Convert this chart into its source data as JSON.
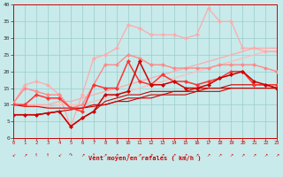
{
  "xlabel": "Vent moyen/en rafales ( km/h )",
  "x": [
    0,
    1,
    2,
    3,
    4,
    5,
    6,
    7,
    8,
    9,
    10,
    11,
    12,
    13,
    14,
    15,
    16,
    17,
    18,
    19,
    20,
    21,
    22,
    23
  ],
  "background_color": "#c8eaea",
  "grid_color": "#99cccc",
  "lines": [
    {
      "y": [
        10.5,
        9.5,
        9.5,
        9.5,
        10,
        10,
        10,
        11,
        12,
        13,
        14,
        15,
        16,
        17,
        18,
        19,
        20,
        21,
        22,
        23,
        24,
        25,
        26,
        26
      ],
      "color": "#ffbbbb",
      "marker": false,
      "lw": 0.9,
      "zorder": 1
    },
    {
      "y": [
        10.5,
        16,
        17,
        16,
        13,
        3.5,
        13,
        24,
        25,
        27,
        34,
        33,
        31,
        31,
        31,
        30,
        31,
        39,
        35,
        35,
        27,
        27,
        26,
        26
      ],
      "color": "#ffaaaa",
      "marker": true,
      "lw": 0.9,
      "zorder": 2
    },
    {
      "y": [
        10.5,
        10,
        10,
        10,
        11,
        11,
        12,
        13,
        14,
        15,
        16,
        17,
        18,
        19,
        20,
        21,
        22,
        23,
        24,
        25,
        26,
        27,
        27,
        27
      ],
      "color": "#ffaaaa",
      "marker": false,
      "lw": 0.9,
      "zorder": 1
    },
    {
      "y": [
        10.5,
        15,
        14,
        13,
        13,
        9,
        10,
        16,
        22,
        22,
        25,
        24,
        22,
        22,
        21,
        21,
        21,
        21,
        22,
        22,
        22,
        22,
        21,
        20
      ],
      "color": "#ff8888",
      "marker": true,
      "lw": 1.0,
      "zorder": 3
    },
    {
      "y": [
        7,
        7,
        7,
        7.5,
        8,
        3.5,
        6,
        8,
        13,
        13,
        14,
        23,
        16,
        16,
        17,
        15,
        15,
        16,
        18,
        19,
        20,
        17,
        16,
        15
      ],
      "color": "#cc0000",
      "marker": true,
      "lw": 1.1,
      "zorder": 6
    },
    {
      "y": [
        7,
        7,
        7,
        7.5,
        8,
        3.5,
        6,
        8,
        11,
        12,
        13,
        13,
        14,
        14,
        14,
        14,
        15,
        15,
        15,
        16,
        16,
        16,
        16,
        15
      ],
      "color": "#cc0000",
      "marker": false,
      "lw": 0.8,
      "zorder": 4
    },
    {
      "y": [
        7,
        7,
        7,
        7.5,
        8,
        8.5,
        9,
        9.5,
        10,
        11,
        11,
        12,
        12,
        13,
        13,
        13,
        14,
        14,
        14,
        15,
        15,
        15,
        15,
        15
      ],
      "color": "#cc0000",
      "marker": false,
      "lw": 0.8,
      "zorder": 4
    },
    {
      "y": [
        10,
        10,
        13,
        12,
        12,
        9,
        8,
        16,
        15,
        15,
        23,
        17,
        16,
        19,
        17,
        17,
        16,
        17,
        18,
        20,
        20,
        16,
        16,
        16
      ],
      "color": "#ff3333",
      "marker": true,
      "lw": 1.1,
      "zorder": 5
    },
    {
      "y": [
        10,
        9.5,
        9.5,
        9,
        9,
        9,
        9,
        10,
        10,
        11,
        12,
        12,
        13,
        13,
        14,
        14,
        14,
        15,
        15,
        15,
        15,
        15,
        15,
        15
      ],
      "color": "#cc0000",
      "marker": false,
      "lw": 0.8,
      "zorder": 4
    }
  ],
  "ylim": [
    0,
    40
  ],
  "xlim": [
    0,
    23
  ],
  "yticks": [
    0,
    5,
    10,
    15,
    20,
    25,
    30,
    35,
    40
  ],
  "xticks": [
    0,
    1,
    2,
    3,
    4,
    5,
    6,
    7,
    8,
    9,
    10,
    11,
    12,
    13,
    14,
    15,
    16,
    17,
    18,
    19,
    20,
    21,
    22,
    23
  ]
}
